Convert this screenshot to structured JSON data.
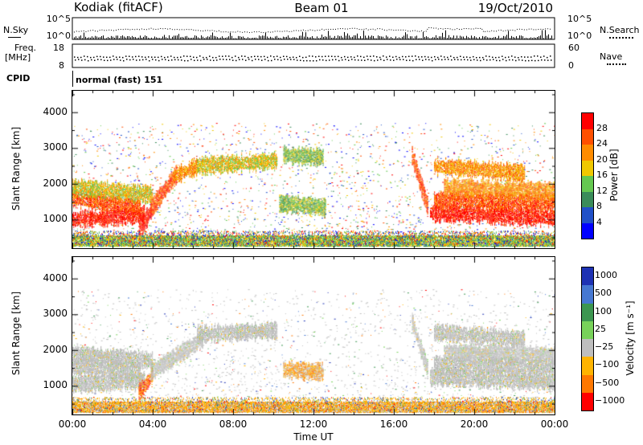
{
  "header": {
    "station": "Kodiak (fitACF)",
    "beam": "Beam 01",
    "date": "19/Oct/2010"
  },
  "noise_panel": {
    "left_label": "N.Sky",
    "right_label": "N.Search",
    "left_ticks": [
      "10^5",
      "10^0"
    ],
    "right_ticks": [
      "10^5",
      "10^0"
    ]
  },
  "freq_panel": {
    "left_label_1": "Freq.",
    "left_label_2": "[MHz]",
    "right_label": "Nave",
    "left_ticks": [
      "18",
      "8"
    ],
    "right_ticks": [
      "60",
      "0"
    ]
  },
  "cpid": {
    "label": "CPID",
    "value": "normal (fast) 151"
  },
  "colors": {
    "power": [
      "#0000ff",
      "#2050c8",
      "#3a8c5a",
      "#64c850",
      "#f0c800",
      "#ff8c00",
      "#ff5000",
      "#ff0000"
    ],
    "velocity": [
      "#1e32b4",
      "#4678d2",
      "#3c9650",
      "#78d25a",
      "#bebebe",
      "#ffb400",
      "#ff7800",
      "#ff0000"
    ]
  },
  "chart_data": [
    {
      "type": "heatmap",
      "quantity": "power",
      "ylabel": "Slant Range [km]",
      "xlabel": "",
      "ylim": [
        200,
        4600
      ],
      "xlim": [
        0,
        24
      ],
      "yticks": [
        "1000",
        "2000",
        "3000",
        "4000"
      ],
      "colorbar": {
        "title": "Power [dB]",
        "ticks": [
          "4",
          "8",
          "12",
          "16",
          "20",
          "24",
          "28"
        ]
      },
      "bands": [
        {
          "t": [
            0.0,
            3.6
          ],
          "r_start": 1000,
          "r_end": 1150,
          "level": 7
        },
        {
          "t": [
            0.0,
            3.4
          ],
          "r_start": 1600,
          "r_end": 1350,
          "level": 6
        },
        {
          "t": [
            0.0,
            4.0
          ],
          "r_start": 1900,
          "r_end": 1700,
          "level": 4
        },
        {
          "t": [
            3.3,
            3.9
          ],
          "r_start": 700,
          "r_end": 1250,
          "level": 7
        },
        {
          "t": [
            3.9,
            5.2
          ],
          "r_start": 1300,
          "r_end": 2300,
          "level": 6
        },
        {
          "t": [
            5.0,
            6.2
          ],
          "r_start": 2200,
          "r_end": 2500,
          "level": 5
        },
        {
          "t": [
            6.2,
            10.2
          ],
          "r_start": 2500,
          "r_end": 2650,
          "level": 4
        },
        {
          "t": [
            10.5,
            12.5
          ],
          "r_start": 2800,
          "r_end": 2750,
          "level": 3
        },
        {
          "t": [
            10.3,
            12.6
          ],
          "r_start": 1450,
          "r_end": 1350,
          "level": 3
        },
        {
          "t": [
            16.9,
            17.7
          ],
          "r_start": 2800,
          "r_end": 1300,
          "level": 6
        },
        {
          "t": [
            17.8,
            24.0
          ],
          "r_start": 1200,
          "r_end": 1050,
          "level": 7
        },
        {
          "t": [
            18.0,
            24.0
          ],
          "r_start": 1550,
          "r_end": 1450,
          "level": 6
        },
        {
          "t": [
            18.5,
            24.0
          ],
          "r_start": 1900,
          "r_end": 1800,
          "level": 5
        },
        {
          "t": [
            18.0,
            22.5
          ],
          "r_start": 2500,
          "r_end": 2300,
          "level": 5
        },
        {
          "t": [
            0.0,
            24.0
          ],
          "r_start": 400,
          "r_end": 400,
          "level": 3
        }
      ]
    },
    {
      "type": "heatmap",
      "quantity": "velocity",
      "ylabel": "Slant Range [km]",
      "xlabel": "Time UT",
      "ylim": [
        200,
        4600
      ],
      "xlim": [
        0,
        24
      ],
      "xticks": [
        "00:00",
        "04:00",
        "08:00",
        "12:00",
        "16:00",
        "20:00",
        "00:00"
      ],
      "yticks": [
        "1000",
        "2000",
        "3000",
        "4000"
      ],
      "colorbar": {
        "title": "Velocity [m s⁻¹]",
        "ticks": [
          "1000",
          "500",
          "100",
          "25",
          "−25",
          "−100",
          "−500",
          "−1000"
        ]
      },
      "bands": [
        {
          "t": [
            0.0,
            3.6
          ],
          "r_start": 1050,
          "r_end": 1150,
          "level": 4
        },
        {
          "t": [
            0.0,
            3.4
          ],
          "r_start": 1550,
          "r_end": 1400,
          "level": 4
        },
        {
          "t": [
            0.0,
            4.0
          ],
          "r_start": 1900,
          "r_end": 1700,
          "level": 4
        },
        {
          "t": [
            3.3,
            4.0
          ],
          "r_start": 800,
          "r_end": 1300,
          "level": 6
        },
        {
          "t": [
            3.9,
            6.5
          ],
          "r_start": 1400,
          "r_end": 2300,
          "level": 4
        },
        {
          "t": [
            6.2,
            10.2
          ],
          "r_start": 2450,
          "r_end": 2550,
          "level": 4
        },
        {
          "t": [
            10.5,
            12.5
          ],
          "r_start": 1450,
          "r_end": 1400,
          "level": 5
        },
        {
          "t": [
            16.9,
            17.7
          ],
          "r_start": 2800,
          "r_end": 1400,
          "level": 4
        },
        {
          "t": [
            17.8,
            24.0
          ],
          "r_start": 1250,
          "r_end": 1100,
          "level": 4
        },
        {
          "t": [
            18.0,
            24.0
          ],
          "r_start": 1600,
          "r_end": 1500,
          "level": 4
        },
        {
          "t": [
            18.5,
            24.0
          ],
          "r_start": 1950,
          "r_end": 1850,
          "level": 4
        },
        {
          "t": [
            18.0,
            22.5
          ],
          "r_start": 2500,
          "r_end": 2300,
          "level": 4
        },
        {
          "t": [
            0.0,
            24.0
          ],
          "r_start": 400,
          "r_end": 400,
          "level": 5
        }
      ]
    }
  ]
}
